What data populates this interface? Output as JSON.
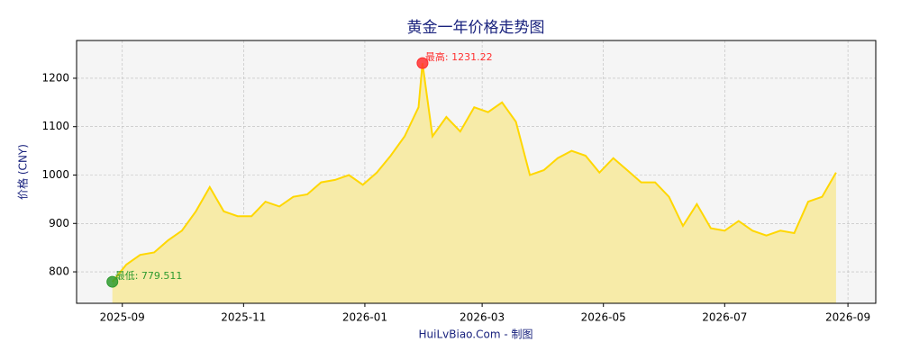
{
  "chart_data": {
    "type": "area",
    "title": "黄金一年价格走势图",
    "y_label": "价格 (CNY)",
    "footer": "HuiLvBiao.Com - 制图",
    "x": [
      "2025-08-27",
      "2025-09-03",
      "2025-09-10",
      "2025-09-17",
      "2025-09-24",
      "2025-10-01",
      "2025-10-08",
      "2025-10-15",
      "2025-10-22",
      "2025-10-29",
      "2025-11-05",
      "2025-11-12",
      "2025-11-19",
      "2025-11-26",
      "2025-12-03",
      "2025-12-10",
      "2025-12-17",
      "2025-12-24",
      "2025-12-31",
      "2026-01-07",
      "2026-01-14",
      "2026-01-21",
      "2026-01-28",
      "2026-01-30",
      "2026-02-04",
      "2026-02-11",
      "2026-02-18",
      "2026-02-25",
      "2026-03-04",
      "2026-03-11",
      "2026-03-18",
      "2026-03-25",
      "2026-04-01",
      "2026-04-08",
      "2026-04-15",
      "2026-04-22",
      "2026-04-29",
      "2026-05-06",
      "2026-05-13",
      "2026-05-20",
      "2026-05-27",
      "2026-06-03",
      "2026-06-10",
      "2026-06-17",
      "2026-06-24",
      "2026-07-01",
      "2026-07-08",
      "2026-07-15",
      "2026-07-22",
      "2026-07-29",
      "2026-08-05",
      "2026-08-12",
      "2026-08-19",
      "2026-08-26"
    ],
    "series": [
      {
        "name": "黄金",
        "color": "#ffd700",
        "fill": "#f7eba8",
        "values": [
          779.511,
          815,
          835,
          840,
          865,
          885,
          925,
          975,
          925,
          915,
          915,
          945,
          935,
          955,
          960,
          985,
          990,
          1000,
          980,
          1005,
          1040,
          1080,
          1140,
          1231.22,
          1080,
          1120,
          1090,
          1140,
          1130,
          1150,
          1110,
          1000,
          1010,
          1035,
          1050,
          1040,
          1005,
          1035,
          1010,
          985,
          985,
          955,
          895,
          940,
          890,
          885,
          905,
          885,
          875,
          885,
          880,
          945,
          955,
          1005
        ]
      }
    ],
    "annotations": [
      {
        "text": "最高: 1231.22",
        "point": 23,
        "color": "#ff3030"
      },
      {
        "text": "最低: 779.511",
        "point": 0,
        "color": "#2e9a2e"
      }
    ],
    "xlim": [
      "2025-08-09",
      "2026-09-15"
    ],
    "xticks": [
      "2025-09",
      "2025-11",
      "2026-01",
      "2026-03",
      "2026-05",
      "2026-07",
      "2026-09"
    ],
    "ylim": [
      735,
      1278
    ],
    "yticks": [
      800,
      900,
      1000,
      1100,
      1200
    ],
    "grid": true
  }
}
